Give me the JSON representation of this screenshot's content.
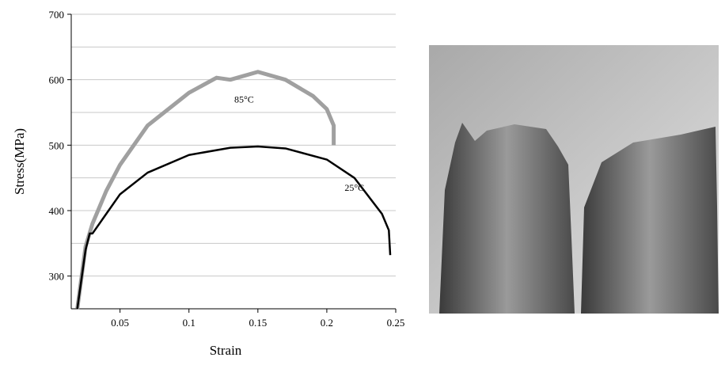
{
  "chart_data": {
    "type": "line",
    "x_label": "Strain",
    "y_label": "Stress(MPa)",
    "xlim": [
      0.0146,
      0.25
    ],
    "xticks": [
      0.05,
      0.1,
      0.15,
      0.2,
      0.25
    ],
    "ylim": [
      250,
      700
    ],
    "yticks": [
      300,
      400,
      500,
      600,
      700
    ],
    "y_minor_ticks": [
      350,
      450,
      550,
      650
    ],
    "grid": true,
    "series": [
      {
        "name": "85°C",
        "color": "#a0a0a0",
        "x": [
          0.019,
          0.025,
          0.03,
          0.04,
          0.05,
          0.07,
          0.1,
          0.12,
          0.13,
          0.15,
          0.17,
          0.19,
          0.2,
          0.205,
          0.205
        ],
        "values": [
          250,
          345,
          380,
          430,
          470,
          530,
          580,
          603,
          600,
          612,
          600,
          575,
          555,
          530,
          500
        ]
      },
      {
        "name": "25°C",
        "color": "#000000",
        "x": [
          0.019,
          0.025,
          0.028,
          0.03,
          0.04,
          0.05,
          0.07,
          0.1,
          0.13,
          0.15,
          0.17,
          0.2,
          0.22,
          0.24,
          0.245,
          0.246
        ],
        "values": [
          250,
          340,
          365,
          365,
          395,
          425,
          458,
          485,
          496,
          498,
          495,
          478,
          450,
          395,
          370,
          332
        ]
      }
    ]
  }
}
